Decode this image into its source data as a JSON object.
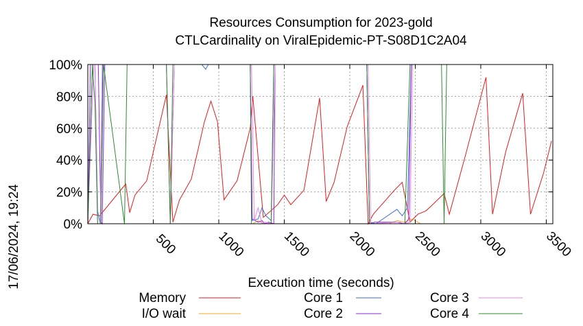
{
  "chart_data": {
    "type": "line",
    "title_line1": "Resources Consumption for 2023-gold",
    "title_line2": "CTLCardinality on ViralEpidemic-PT-S08D1C2A04",
    "xlabel": "Execution time (seconds)",
    "ylabel": "",
    "xlim": [
      0,
      3550
    ],
    "ylim": [
      0,
      100
    ],
    "side_stamp": "17/06/2024, 19:24",
    "x_ticks": [
      500,
      1000,
      1500,
      2000,
      2500,
      3000,
      3500
    ],
    "x_tick_labels": [
      "500",
      "1000",
      "1500",
      "2000",
      "2500",
      "3000",
      "3500"
    ],
    "y_ticks": [
      0,
      20,
      40,
      60,
      80,
      100
    ],
    "y_tick_labels": [
      "0%",
      "20%",
      "40%",
      "60%",
      "80%",
      "100%"
    ],
    "grid": true,
    "legend_position": "bottom",
    "series": [
      {
        "name": "Memory",
        "color": "#e41a1c",
        "x": [
          0,
          40,
          90,
          290,
          320,
          360,
          450,
          600,
          650,
          700,
          790,
          890,
          940,
          990,
          1040,
          1140,
          1240,
          1260,
          1340,
          1450,
          1500,
          1550,
          1650,
          1770,
          1820,
          1880,
          1980,
          2100,
          2140,
          2180,
          2340,
          2400,
          2460,
          2520,
          2580,
          2620,
          2720,
          2760,
          2880,
          3040,
          3090,
          3190,
          3320,
          3380,
          3480,
          3540
        ],
        "y": [
          0,
          6,
          5,
          25,
          7,
          18,
          27,
          81,
          1,
          15,
          28,
          64,
          77,
          64,
          15,
          27,
          60,
          80,
          4,
          12,
          18,
          12,
          21,
          79,
          14,
          26,
          61,
          87,
          0,
          6,
          21,
          26,
          1,
          6,
          8,
          11,
          19,
          6,
          42,
          92,
          6,
          45,
          82,
          6,
          32,
          52
        ]
      },
      {
        "name": "I/O wait",
        "color": "#f5a623",
        "x": [
          0,
          1260,
          1300,
          1340,
          1380,
          2130,
          2300,
          2360,
          2420,
          2480,
          2540,
          3540
        ],
        "y": [
          0,
          0,
          2,
          0,
          0,
          0,
          0,
          2,
          1,
          3,
          0,
          0
        ]
      },
      {
        "name": "Core 1",
        "color": "#3b6fd1",
        "x": [
          0,
          35,
          55,
          75,
          95,
          115,
          140,
          280,
          300,
          320,
          870,
          900,
          920,
          1240,
          1255,
          1300,
          1330,
          1360,
          1400,
          1420,
          1470,
          2130,
          2150,
          2200,
          2360,
          2400,
          2440,
          2470,
          2520,
          2720,
          2740,
          3540
        ],
        "y": [
          0,
          100,
          100,
          8,
          0,
          100,
          100,
          100,
          100,
          100,
          100,
          97,
          100,
          100,
          2,
          3,
          10,
          5,
          2,
          100,
          100,
          100,
          1,
          0,
          9,
          5,
          10,
          100,
          100,
          100,
          100,
          100
        ]
      },
      {
        "name": "Core 2",
        "color": "#8a2be2",
        "x": [
          0,
          20,
          40,
          80,
          100,
          110,
          130,
          140,
          200,
          300,
          320,
          600,
          630,
          660,
          1240,
          1255,
          1300,
          1330,
          1350,
          1380,
          1420,
          1430,
          2130,
          2150,
          2190,
          2360,
          2420,
          2450,
          2470,
          2540,
          2720,
          3540
        ],
        "y": [
          0,
          100,
          100,
          100,
          1,
          0,
          100,
          100,
          100,
          100,
          100,
          100,
          0,
          100,
          100,
          3,
          1,
          2,
          0,
          1,
          0,
          100,
          100,
          0,
          1,
          1,
          0,
          3,
          100,
          100,
          100,
          100
        ]
      },
      {
        "name": "Core 3",
        "color": "#ee82ee",
        "x": [
          0,
          45,
          55,
          75,
          95,
          110,
          130,
          300,
          600,
          630,
          660,
          1250,
          1270,
          1300,
          1330,
          1350,
          1400,
          1430,
          2140,
          2160,
          2380,
          2420,
          2460,
          2480,
          2720,
          3540
        ],
        "y": [
          0,
          100,
          100,
          0,
          0,
          100,
          100,
          100,
          100,
          0,
          100,
          100,
          2,
          10,
          0,
          1,
          0,
          100,
          100,
          0,
          1,
          0,
          1,
          100,
          100,
          100
        ]
      },
      {
        "name": "Core 4",
        "color": "#2e8b2e",
        "x": [
          0,
          35,
          55,
          75,
          100,
          120,
          280,
          300,
          320,
          600,
          630,
          650,
          1240,
          1250,
          1400,
          1420,
          1440,
          2130,
          2150,
          2180,
          2420,
          2460,
          2700,
          2720,
          2740,
          3540
        ],
        "y": [
          0,
          100,
          75,
          0,
          0,
          100,
          0,
          100,
          100,
          100,
          0,
          100,
          100,
          0,
          0,
          100,
          100,
          100,
          0,
          0,
          0,
          100,
          100,
          0,
          100,
          100
        ]
      }
    ]
  }
}
